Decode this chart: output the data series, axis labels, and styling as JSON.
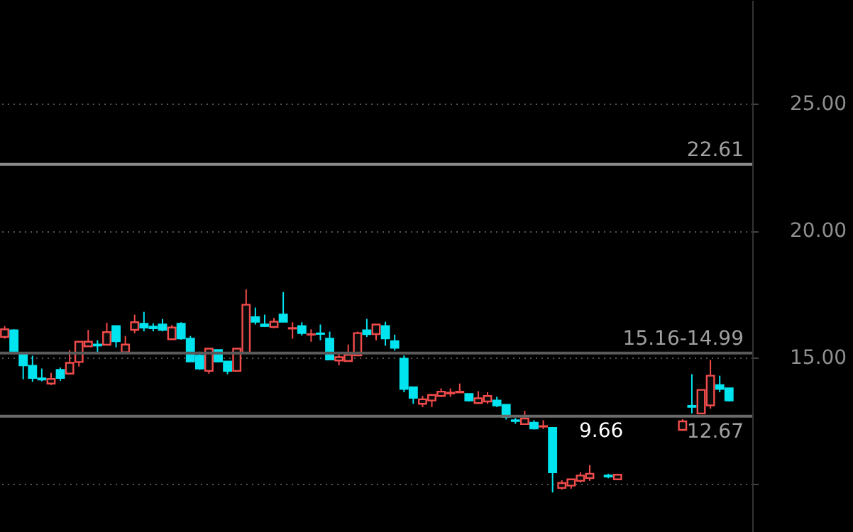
{
  "chart_data": {
    "type": "candlestick",
    "categories": [
      null,
      null,
      null,
      null,
      null,
      null,
      null,
      null,
      null,
      null,
      null,
      null,
      null,
      null,
      null,
      null,
      null,
      null,
      null,
      null,
      null,
      null,
      null,
      null,
      null,
      null,
      null,
      null,
      null,
      null,
      null,
      null,
      null,
      null,
      null,
      null,
      null,
      null,
      null,
      null,
      null,
      null,
      null,
      null,
      null,
      null,
      null,
      null,
      null,
      null,
      null,
      null,
      null,
      null,
      null,
      null,
      null,
      null,
      null,
      null,
      null,
      null,
      null,
      null,
      null,
      null,
      null,
      null,
      null,
      null,
      null,
      null,
      null,
      null,
      null,
      null,
      null,
      null,
      null,
      null,
      null
    ],
    "ohlc": [
      [
        15.8,
        16.23,
        15.73,
        16.1
      ],
      [
        16.06,
        16.1,
        15.11,
        15.17
      ],
      [
        15.15,
        15.2,
        14.13,
        14.68
      ],
      [
        14.66,
        15.06,
        14.03,
        14.18
      ],
      [
        14.16,
        14.55,
        14.05,
        14.12
      ],
      [
        13.96,
        14.38,
        13.9,
        14.14
      ],
      [
        14.5,
        14.59,
        14.07,
        14.18
      ],
      [
        14.35,
        15.28,
        14.35,
        14.78
      ],
      [
        14.81,
        15.61,
        14.63,
        15.61
      ],
      [
        15.43,
        16.08,
        15.43,
        15.61
      ],
      [
        15.5,
        15.67,
        15.19,
        15.46
      ],
      [
        15.49,
        16.36,
        15.49,
        15.99
      ],
      [
        16.23,
        16.23,
        15.39,
        15.63
      ],
      [
        15.19,
        15.84,
        15.19,
        15.5
      ],
      [
        16.08,
        16.68,
        15.95,
        16.38
      ],
      [
        16.32,
        16.79,
        16.02,
        16.17
      ],
      [
        16.21,
        16.34,
        16.02,
        16.14
      ],
      [
        16.29,
        16.51,
        16.02,
        16.08
      ],
      [
        15.71,
        16.27,
        15.71,
        16.17
      ],
      [
        16.32,
        16.38,
        15.69,
        15.74
      ],
      [
        15.73,
        15.84,
        14.83,
        14.83
      ],
      [
        15.06,
        15.22,
        14.5,
        14.55
      ],
      [
        14.46,
        15.34,
        14.35,
        15.34
      ],
      [
        15.28,
        15.28,
        14.79,
        14.83
      ],
      [
        14.83,
        14.83,
        14.33,
        14.46
      ],
      [
        14.46,
        15.34,
        14.46,
        15.34
      ],
      [
        15.17,
        17.68,
        15.17,
        17.07
      ],
      [
        16.58,
        16.96,
        16.29,
        16.4
      ],
      [
        16.29,
        16.68,
        16.19,
        16.23
      ],
      [
        16.19,
        16.55,
        16.15,
        16.4
      ],
      [
        16.68,
        17.57,
        16.4,
        16.4
      ],
      [
        16.13,
        16.38,
        15.73,
        16.15
      ],
      [
        16.23,
        16.38,
        15.86,
        15.95
      ],
      [
        15.89,
        16.1,
        15.61,
        15.91
      ],
      [
        15.94,
        16.29,
        15.67,
        15.92
      ],
      [
        15.73,
        16.01,
        14.91,
        14.91
      ],
      [
        14.87,
        15.11,
        14.68,
        15.0
      ],
      [
        14.85,
        15.5,
        14.85,
        15.09
      ],
      [
        15.07,
        16.01,
        15.07,
        15.95
      ],
      [
        16.06,
        16.51,
        15.8,
        15.91
      ],
      [
        15.91,
        16.29,
        15.67,
        16.29
      ],
      [
        16.23,
        16.4,
        15.45,
        15.74
      ],
      [
        15.63,
        15.89,
        15.26,
        15.37
      ],
      [
        14.94,
        15.07,
        13.62,
        13.75
      ],
      [
        13.81,
        13.81,
        13.16,
        13.4
      ],
      [
        13.16,
        13.47,
        13.03,
        13.34
      ],
      [
        13.29,
        13.51,
        13.03,
        13.51
      ],
      [
        13.47,
        13.77,
        13.44,
        13.64
      ],
      [
        13.57,
        13.77,
        13.44,
        13.6
      ],
      [
        13.61,
        13.96,
        13.59,
        13.64
      ],
      [
        13.55,
        13.55,
        13.25,
        13.29
      ],
      [
        13.19,
        13.66,
        13.16,
        13.38
      ],
      [
        13.25,
        13.62,
        13.16,
        13.47
      ],
      [
        13.29,
        13.44,
        13.03,
        13.1
      ],
      [
        13.12,
        13.12,
        12.54,
        12.64
      ],
      [
        12.51,
        12.6,
        12.37,
        12.48
      ],
      [
        12.36,
        12.88,
        12.36,
        12.58
      ],
      [
        12.41,
        12.51,
        12.15,
        12.19
      ],
      [
        12.26,
        12.51,
        12.17,
        12.28
      ],
      [
        12.21,
        12.21,
        9.66,
        10.46
      ],
      [
        9.84,
        10.14,
        9.77,
        10.03
      ],
      [
        9.93,
        10.18,
        9.81,
        10.18
      ],
      [
        10.12,
        10.46,
        10.05,
        10.33
      ],
      [
        10.23,
        10.74,
        10.12,
        10.4
      ],
      null,
      [
        10.33,
        10.4,
        10.22,
        10.29
      ],
      [
        10.18,
        10.4,
        10.15,
        10.36
      ],
      null,
      null,
      null,
      null,
      null,
      null,
      [
        12.13,
        12.55,
        12.1,
        12.47
      ],
      [
        13.08,
        14.33,
        12.78,
        13.04
      ],
      [
        12.78,
        13.71,
        12.78,
        13.71
      ],
      [
        13.1,
        14.89,
        12.97,
        14.27
      ],
      [
        13.9,
        14.27,
        13.62,
        13.75
      ],
      [
        13.77,
        13.77,
        13.25,
        13.29
      ],
      null,
      null
    ],
    "ylim": [
      8.1,
      29.1
    ],
    "yticks": [
      {
        "value": 10,
        "label": null
      },
      "15.00",
      "20.00",
      "25.00"
    ],
    "grid": "y",
    "tick_labels": "y",
    "ref_lines": [
      {
        "axis": "y",
        "value": 22.61,
        "label": "22.61",
        "color": "#8a8a8a"
      },
      {
        "axis": "y",
        "value": 15.16,
        "label": "15.16-14.99",
        "color": "#5a5a5a"
      },
      {
        "axis": "y",
        "value": 12.67,
        "label": "12.67",
        "color": "#6a6a6a"
      }
    ],
    "annotations": [
      "9.66"
    ]
  }
}
